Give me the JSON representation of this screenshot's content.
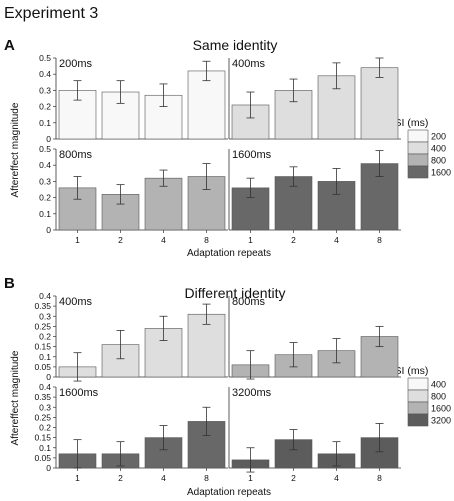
{
  "figure_title": "Experiment 3",
  "colors": {
    "200": "#f8f8f8",
    "400": "#dedede",
    "800": "#b3b3b3",
    "1600": "#686868",
    "3200": "#5c5c5c",
    "bar_stroke": "#555555",
    "error_bar": "#333333"
  },
  "panels": [
    {
      "letter": "A",
      "title": "Same identity",
      "ylabel": "Aftereffect magnitude",
      "xlabel": "Adaptation repeats",
      "legend": {
        "title": "ISI (ms)",
        "items": [
          "200",
          "400",
          "800",
          "1600"
        ]
      }
    },
    {
      "letter": "B",
      "title": "Different identity",
      "ylabel": "Aftereffect magnitude",
      "xlabel": "Adaptation repeats",
      "legend": {
        "title": "ISI (ms)",
        "items": [
          "400",
          "800",
          "1600",
          "3200"
        ]
      }
    }
  ],
  "chart_data": [
    {
      "type": "bar",
      "title": "200ms",
      "categories": [
        "1",
        "2",
        "4",
        "8"
      ],
      "values": [
        0.3,
        0.29,
        0.27,
        0.42
      ],
      "errors": [
        0.06,
        0.07,
        0.07,
        0.06
      ],
      "color_key": "200",
      "yticks": [
        "0",
        "0.1",
        "0.2",
        "0.3",
        "0.4",
        "0.5"
      ],
      "ylim": [
        0,
        0.5
      ]
    },
    {
      "type": "bar",
      "title": "400ms",
      "categories": [
        "1",
        "2",
        "4",
        "8"
      ],
      "values": [
        0.21,
        0.3,
        0.39,
        0.44
      ],
      "errors": [
        0.08,
        0.07,
        0.08,
        0.06
      ],
      "color_key": "400",
      "yticks": [],
      "ylim": [
        0,
        0.5
      ]
    },
    {
      "type": "bar",
      "title": "800ms",
      "categories": [
        "1",
        "2",
        "4",
        "8"
      ],
      "values": [
        0.26,
        0.22,
        0.32,
        0.33
      ],
      "errors": [
        0.07,
        0.06,
        0.05,
        0.08
      ],
      "color_key": "800",
      "yticks": [
        "0",
        "0.1",
        "0.2",
        "0.3",
        "0.4",
        "0.5"
      ],
      "ylim": [
        0,
        0.5
      ]
    },
    {
      "type": "bar",
      "title": "1600ms",
      "categories": [
        "1",
        "2",
        "4",
        "8"
      ],
      "values": [
        0.26,
        0.33,
        0.3,
        0.41
      ],
      "errors": [
        0.06,
        0.06,
        0.08,
        0.08
      ],
      "color_key": "1600",
      "yticks": [],
      "ylim": [
        0,
        0.5
      ]
    },
    {
      "type": "bar",
      "title": "400ms",
      "categories": [
        "1",
        "2",
        "4",
        "8"
      ],
      "values": [
        0.05,
        0.16,
        0.24,
        0.31
      ],
      "errors": [
        0.07,
        0.07,
        0.06,
        0.05
      ],
      "color_key": "400",
      "yticks": [
        "0",
        "0.05",
        "0.1",
        "0.15",
        "0.2",
        "0.25",
        "0.3",
        "0.35",
        "0.4"
      ],
      "ylim": [
        0,
        0.4
      ]
    },
    {
      "type": "bar",
      "title": "800ms",
      "categories": [
        "1",
        "2",
        "4",
        "8"
      ],
      "values": [
        0.06,
        0.11,
        0.13,
        0.2
      ],
      "errors": [
        0.07,
        0.06,
        0.06,
        0.05
      ],
      "color_key": "800",
      "yticks": [],
      "ylim": [
        0,
        0.4
      ]
    },
    {
      "type": "bar",
      "title": "1600ms",
      "categories": [
        "1",
        "2",
        "4",
        "8"
      ],
      "values": [
        0.07,
        0.07,
        0.15,
        0.23
      ],
      "errors": [
        0.07,
        0.06,
        0.06,
        0.07
      ],
      "color_key": "1600",
      "yticks": [
        "0",
        "0.05",
        "0.1",
        "0.15",
        "0.2",
        "0.25",
        "0.3",
        "0.35",
        "0.4"
      ],
      "ylim": [
        0,
        0.4
      ]
    },
    {
      "type": "bar",
      "title": "3200ms",
      "categories": [
        "1",
        "2",
        "4",
        "8"
      ],
      "values": [
        0.04,
        0.14,
        0.07,
        0.15
      ],
      "errors": [
        0.06,
        0.05,
        0.06,
        0.07
      ],
      "color_key": "3200",
      "yticks": [],
      "ylim": [
        0,
        0.4
      ]
    }
  ]
}
